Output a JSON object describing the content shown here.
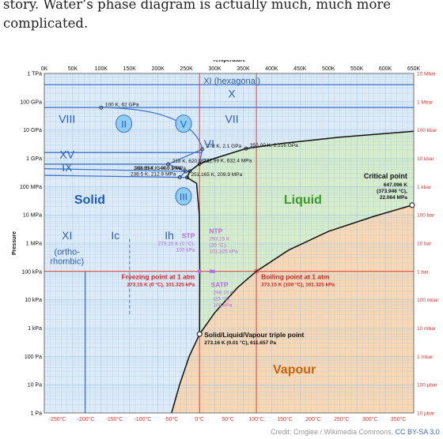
{
  "article": {
    "line1": "story. Water’s phase diagram is actually much, much more",
    "line2": "complicated."
  },
  "credit": {
    "prefix": "Credit: Cmglee / Wikimedia Commons, ",
    "license": "CC BY-SA 3.0"
  },
  "colors": {
    "solid": "#dcebf7",
    "liquid": "#d6eccb",
    "vapour": "#f8d8b4",
    "grid": "#9cc3e6",
    "blue_lines": "#3f73c8",
    "red_lines": "#e04040",
    "boundary": "#111111",
    "stp_text": "#b46ce0"
  },
  "chart_data": {
    "type": "phase-diagram",
    "title": "",
    "top_axis": {
      "label": "Temperature",
      "ticks": [
        "0K",
        "50K",
        "100K",
        "150K",
        "200K",
        "250K",
        "300K",
        "350K",
        "400K",
        "450K",
        "500K",
        "550K",
        "600K",
        "650K"
      ],
      "range_K": [
        0,
        650
      ]
    },
    "bottom_axis": {
      "ticks": [
        "-250°C",
        "-200°C",
        "-150°C",
        "-100°C",
        "-50°C",
        "0°C",
        "50°C",
        "100°C",
        "150°C",
        "200°C",
        "250°C",
        "300°C",
        "350°C"
      ],
      "tick_values_C": [
        -250,
        -200,
        -150,
        -100,
        -50,
        0,
        50,
        100,
        150,
        200,
        250,
        300,
        350
      ]
    },
    "left_axis": {
      "label": "Pressure",
      "ticks": [
        "1 TPa",
        "100 GPa",
        "10 GPa",
        "1 GPa",
        "100 MPa",
        "10 MPa",
        "1 MPa",
        "100 kPa",
        "10 kPa",
        "1 kPa",
        "100 Pa",
        "10 Pa",
        "1 Pa"
      ],
      "scale": "log",
      "range_Pa": [
        1,
        1000000000000.0
      ]
    },
    "right_axis": {
      "ticks": [
        "10 Mbar",
        "1 Mbar",
        "100 kbar",
        "10 kbar",
        "1 kbar",
        "100 bar",
        "10 bar",
        "1 bar",
        "100 mbar",
        "10 mbar",
        "1 mbar",
        "100 µbar",
        "10 µbar"
      ]
    },
    "regions": [
      {
        "name": "Solid",
        "T": 80,
        "P": 25000000.0
      },
      {
        "name": "Liquid",
        "T": 455,
        "P": 25000000.0
      },
      {
        "name": "Vapour",
        "T": 440,
        "P": 25.0
      }
    ],
    "phase_labels": [
      {
        "text": "XI (hexagonal)",
        "T": 330,
        "P": 440000000000.0,
        "color": "#2b5fb5"
      },
      {
        "text": "X",
        "T": 330,
        "P": 140000000000.0,
        "color": "#2b5fb5"
      },
      {
        "text": "VIII",
        "T": 40,
        "P": 18000000000.0,
        "color": "#2b5fb5"
      },
      {
        "text": "VII",
        "T": 330,
        "P": 18000000000.0,
        "color": "#2b5fb5"
      },
      {
        "text": "VI",
        "T": 290,
        "P": 2400000000.0,
        "color": "#2b5fb5"
      },
      {
        "text": "XV",
        "T": 40,
        "P": 1000000000.0,
        "color": "#2b5fb5"
      },
      {
        "text": "IX",
        "T": 40,
        "P": 350000000.0,
        "color": "#2b5fb5"
      },
      {
        "text": "XI",
        "T": 40,
        "P": 1400000.0,
        "color": "#2b5fb5"
      },
      {
        "text": "(ortho-",
        "T": 40,
        "P": 400000.0,
        "color": "#2b5fb5"
      },
      {
        "text": "rhombic)",
        "T": 40,
        "P": 180000.0,
        "color": "#2b5fb5"
      },
      {
        "text": "Ic",
        "T": 125,
        "P": 1400000.0,
        "color": "#2b5fb5"
      },
      {
        "text": "Ih",
        "T": 220,
        "P": 1400000.0,
        "color": "#2b5fb5"
      }
    ],
    "circled_labels": [
      {
        "text": "II",
        "T": 140,
        "P": 13000000000.0
      },
      {
        "text": "V",
        "T": 245,
        "P": 13000000000.0
      },
      {
        "text": "III",
        "T": 245,
        "P": 35000000.0
      }
    ],
    "annotations": [
      {
        "text": "100 K, 62 GPa",
        "T": 100,
        "P": 62000000000.0
      },
      {
        "text": "278 K, 2.1 GPa",
        "T": 278,
        "P": 2100000000.0
      },
      {
        "text": "355.00 K, 2.216 GPa",
        "T": 355,
        "P": 2216000000.0
      },
      {
        "text": "218 K, 620 MPa",
        "T": 218,
        "P": 620000000.0
      },
      {
        "text": "272.99 K, 632.4 MPa",
        "T": 272.99,
        "P": 632400000.0
      },
      {
        "text": "248.85 K, 344.3 MPa",
        "T": 248.85,
        "P": 344300000.0
      },
      {
        "text": "256.164 K, 350.1 MPa",
        "T": 256.164,
        "P": 350100000.0
      },
      {
        "text": "251.165 K, 209.9 MPa",
        "T": 251.165,
        "P": 209900000.0
      },
      {
        "text": "238.5 K, 212.9 MPa",
        "T": 238.5,
        "P": 212900000.0
      }
    ],
    "critical_point": {
      "title": "Critical point",
      "lines": [
        "647.096 K",
        "(373.946 °C),",
        "22.064 MPa"
      ],
      "T": 647.096,
      "P": 22064000.0
    },
    "triple_point": {
      "title": "Solid/Liquid/Vapour triple point",
      "detail": "273.16 K (0.01 °C), 611.657 Pa",
      "T": 273.16,
      "P": 611.657
    },
    "freezing_point": {
      "title": "Freezing point at 1 atm",
      "detail": "273.15 K (0 °C), 101.325 kPa",
      "T": 273.15,
      "P": 101325
    },
    "boiling_point": {
      "title": "Boiling point at 1 atm",
      "detail": "373.15 K (100 °C), 101.325 kPa",
      "T": 373.15,
      "P": 101325
    },
    "stp": {
      "title": "STP",
      "lines": [
        "273.15 K (0 °C),",
        "100 kPa"
      ]
    },
    "ntp": {
      "title": "NTP",
      "lines": [
        "293.15 K",
        "(20 °C),",
        "101.325 kPa"
      ]
    },
    "satp": {
      "title": "SATP",
      "lines": [
        "298.15 K",
        "(25 °C),",
        "100 kPa"
      ]
    }
  }
}
